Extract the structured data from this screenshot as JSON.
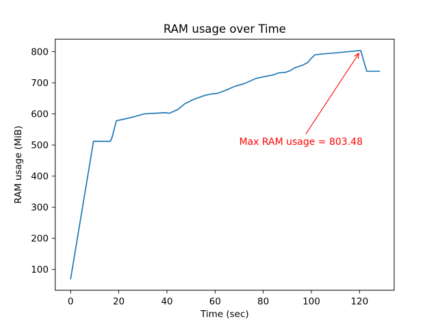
{
  "figure": {
    "background": "#ffffff",
    "text_color": "#000000"
  },
  "chart_data": {
    "type": "line",
    "title": "RAM usage over Time",
    "xlabel": "Time (sec)",
    "ylabel": "RAM usage (MiB)",
    "xlim": [
      -6.4,
      134.4
    ],
    "ylim": [
      33.3,
      840.2
    ],
    "xticks": [
      0,
      20,
      40,
      60,
      80,
      100,
      120
    ],
    "yticks": [
      100,
      200,
      300,
      400,
      500,
      600,
      700,
      800
    ],
    "grid": false,
    "legend_position": "none",
    "series": [
      {
        "name": "RAM usage",
        "color": "#1f77b4",
        "x": [
          0,
          9.5,
          16.5,
          17.2,
          19,
          21.5,
          26,
          30.5,
          35,
          39.5,
          41,
          44.5,
          47.5,
          51.5,
          56,
          58.5,
          61,
          64.5,
          68,
          72,
          77,
          80.5,
          84,
          86.5,
          89,
          91,
          93,
          95,
          96.5,
          98.5,
          100,
          101.5,
          105,
          110,
          114,
          118,
          120.5,
          123,
          128.3
        ],
        "y": [
          70,
          512,
          512,
          524,
          578,
          582,
          590,
          600,
          602,
          604,
          602,
          614,
          633,
          648,
          660,
          664,
          666,
          676,
          688,
          697,
          714,
          720,
          725,
          732,
          733,
          738,
          748,
          753,
          757,
          765,
          779,
          790,
          793,
          796,
          799,
          802,
          803.48,
          737,
          737
        ]
      }
    ],
    "annotation": {
      "text": "Max RAM usage = 803.48",
      "xy": [
        120.5,
        803.48
      ],
      "xytext": [
        70,
        500
      ],
      "color": "#ff0000",
      "max_value": "803.48"
    }
  }
}
